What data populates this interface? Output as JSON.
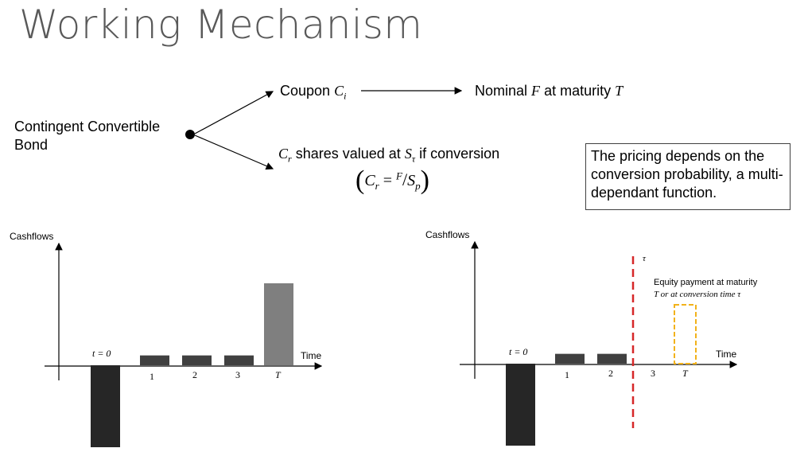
{
  "title": "Working Mechanism",
  "root": {
    "line1": "Contingent Convertible",
    "line2": "Bond"
  },
  "coupon": {
    "label": "Coupon",
    "symbol": "C",
    "sub": "i"
  },
  "nominal": {
    "label_a": "Nominal",
    "F": "F",
    "label_b": "at maturity",
    "T": "T"
  },
  "shares": {
    "C": "C",
    "r": "r",
    "text1": "shares valued at",
    "S": "S",
    "tau": "τ",
    "text2": "if conversion",
    "formula_open": "(",
    "formula_C": "C",
    "formula_r": "r",
    "formula_eq": "=",
    "formula_F": "F",
    "formula_slash": "/",
    "formula_S": "S",
    "formula_p": "p",
    "formula_close": ")"
  },
  "note": "The pricing depends on the conversion probability, a multi-dependant function.",
  "left_chart": {
    "ylabel": "Cashflows",
    "xlabel": "Time",
    "t0_label": "t = 0",
    "ticks": [
      "1",
      "2",
      "3",
      "T"
    ]
  },
  "right_chart": {
    "ylabel": "Cashflows",
    "xlabel": "Time",
    "t0_label": "t = 0",
    "ticks": [
      "1",
      "2",
      "3",
      "T"
    ],
    "tau_label": "τ",
    "equity_line1": "Equity payment at maturity",
    "equity_line2": "T or at conversion time τ"
  },
  "chart_data": [
    {
      "type": "bar",
      "categories": [
        "t = 0",
        "1",
        "2",
        "3",
        "T"
      ],
      "values": [
        -100,
        12,
        12,
        12,
        100
      ]
    },
    {
      "type": "bar",
      "categories": [
        "t = 0",
        "1",
        "2",
        "3",
        "T"
      ],
      "values": [
        -100,
        12,
        12,
        0,
        0
      ],
      "conversion_time_marker": "τ"
    }
  ],
  "colors": {
    "bar_dark": "#262626",
    "bar_mid": "#404040",
    "bar_light": "#7f7f7f",
    "tau_line": "#d62728",
    "equity_box": "#f2b21b"
  }
}
